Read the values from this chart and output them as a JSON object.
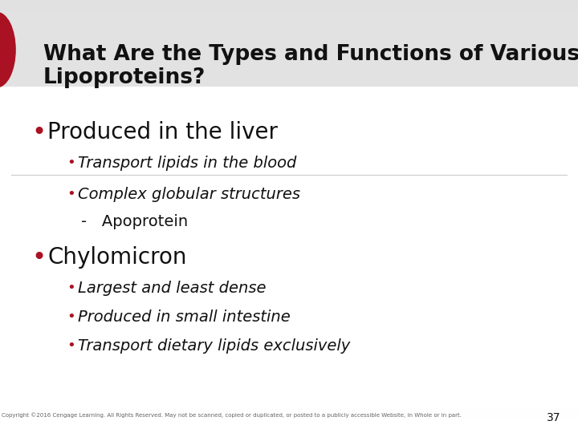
{
  "title_line1": "What Are the Types and Functions of Various",
  "title_line2": "Lipoproteins?",
  "title_font_size": 19,
  "title_text_color": "#111111",
  "red_color": "#aa1122",
  "bullet1_text": "Produced in the liver",
  "bullet1_font_size": 20,
  "sub_bullet1a": "Transport lipids in the blood",
  "sub_bullet1b": "Complex globular structures",
  "sub_dash1": "Apoprotein",
  "bullet2_text": "Chylomicron",
  "bullet2_font_size": 20,
  "sub_bullet2a": "Largest and least dense",
  "sub_bullet2b": "Produced in small intestine",
  "sub_bullet2c": "Transport dietary lipids exclusively",
  "sub_font_size": 14,
  "footer_text": "Copyright ©2016 Cengage Learning. All Rights Reserved. May not be scanned, copied or duplicated, or posted to a publicly accessible Website, in Whole or in part.",
  "page_number": "37",
  "divider_color": "#cccccc",
  "text_color": "#111111"
}
